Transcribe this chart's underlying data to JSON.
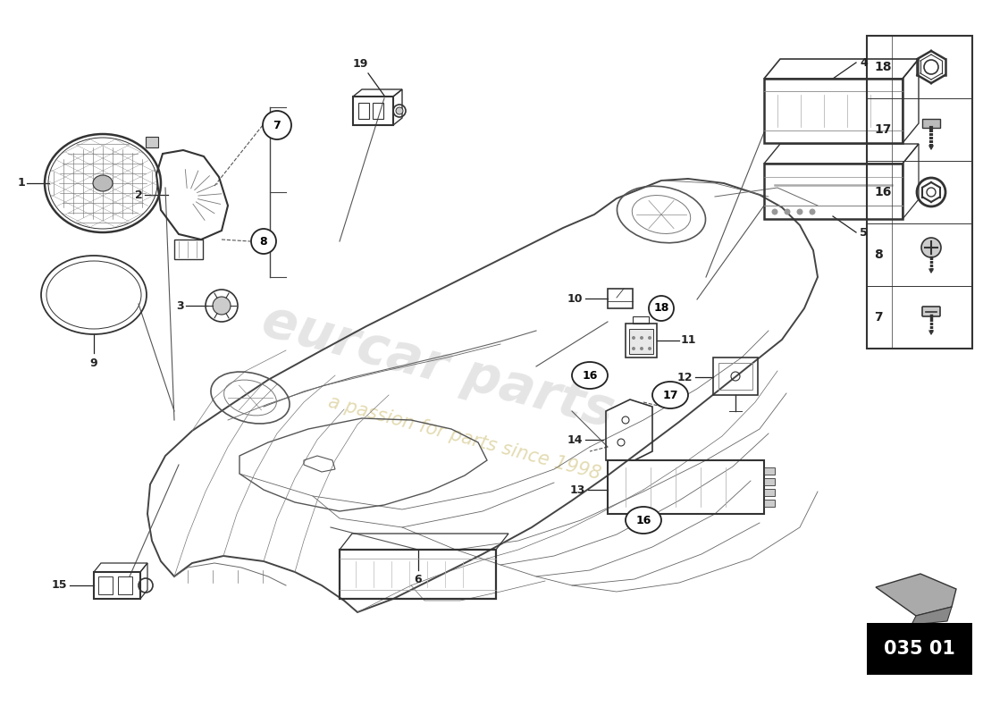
{
  "bg_color": "#ffffff",
  "line_color": "#222222",
  "badge_text": "035 01",
  "badge_color": "#000000",
  "badge_text_color": "#ffffff",
  "watermark1": "eurcar parts",
  "watermark2": "a passion for parts since 1998",
  "car_color": "#444444",
  "part_color": "#333333"
}
